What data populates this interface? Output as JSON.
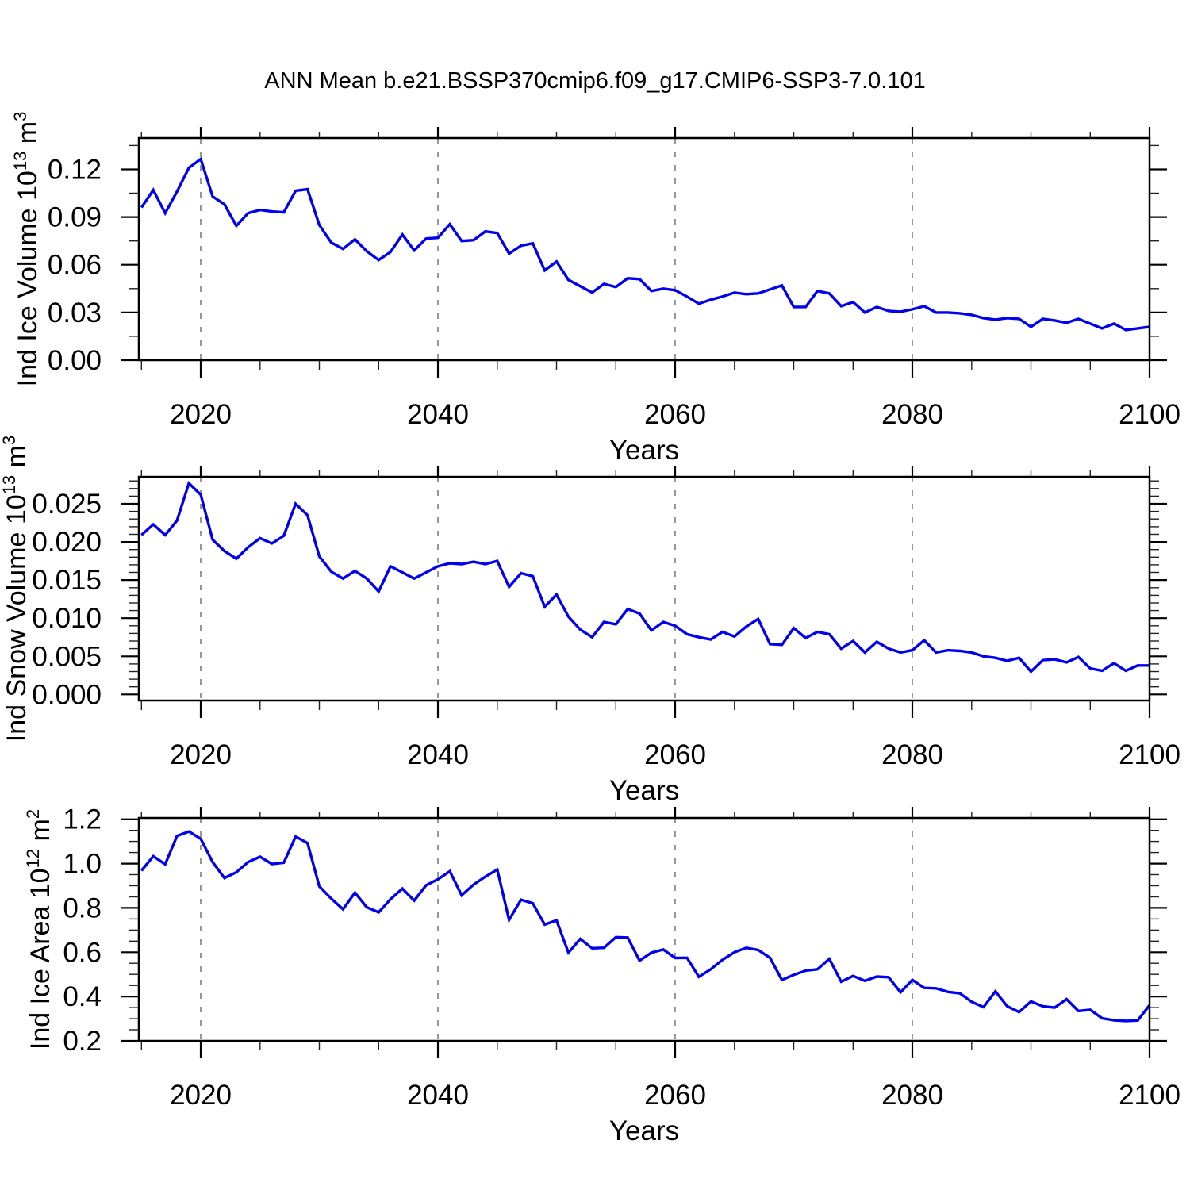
{
  "title": "ANN Mean b.e21.BSSP370cmip6.f09_g17.CMIP6-SSP3-7.0.101",
  "chart_data": {
    "type": "line",
    "title": "ANN Mean b.e21.BSSP370cmip6.f09_g17.CMIP6-SSP3-7.0.101",
    "x_label": "Years",
    "series_color": "#0000EE",
    "grid_color": "#8c8c8c",
    "legend": "none",
    "grid": "vertical dashed at major x ticks",
    "years": [
      2015,
      2016,
      2017,
      2018,
      2019,
      2020,
      2021,
      2022,
      2023,
      2024,
      2025,
      2026,
      2027,
      2028,
      2029,
      2030,
      2031,
      2032,
      2033,
      2034,
      2035,
      2036,
      2037,
      2038,
      2039,
      2040,
      2041,
      2042,
      2043,
      2044,
      2045,
      2046,
      2047,
      2048,
      2049,
      2050,
      2051,
      2052,
      2053,
      2054,
      2055,
      2056,
      2057,
      2058,
      2059,
      2060,
      2061,
      2062,
      2063,
      2064,
      2065,
      2066,
      2067,
      2068,
      2069,
      2070,
      2071,
      2072,
      2073,
      2074,
      2075,
      2076,
      2077,
      2078,
      2079,
      2080,
      2081,
      2082,
      2083,
      2084,
      2085,
      2086,
      2087,
      2088,
      2089,
      2090,
      2091,
      2092,
      2093,
      2094,
      2095,
      2096,
      2097,
      2098,
      2099,
      2100
    ],
    "x_axis": {
      "lim": [
        2014.78,
        2100
      ],
      "major_ticks": [
        2020,
        2040,
        2060,
        2080,
        2100
      ],
      "major_tick_labels": [
        "2020",
        "2040",
        "2060",
        "2080",
        "2100"
      ],
      "minor_step": 5,
      "gridlines": [
        2020,
        2040,
        2060,
        2080
      ]
    },
    "panels": [
      {
        "id": "ice-volume",
        "ylabel": "Ind Ice Volume 10^13 m^3",
        "ylabel_rich": [
          {
            "t": "Ind Ice Volume 10"
          },
          {
            "t": "13",
            "sup": true
          },
          {
            "t": " m"
          },
          {
            "t": "3",
            "sup": true
          }
        ],
        "ylim": [
          0,
          0.1397
        ],
        "ytick_values": [
          0.0,
          0.03,
          0.06,
          0.09,
          0.12
        ],
        "ytick_labels": [
          "0.00",
          "0.03",
          "0.06",
          "0.09",
          "0.12"
        ],
        "y_minor_step": 0.015,
        "values": [
          0.096,
          0.107,
          0.0925,
          0.106,
          0.121,
          0.1265,
          0.103,
          0.098,
          0.0845,
          0.0925,
          0.0945,
          0.0935,
          0.093,
          0.1065,
          0.1075,
          0.085,
          0.074,
          0.07,
          0.076,
          0.0685,
          0.063,
          0.068,
          0.079,
          0.069,
          0.0765,
          0.077,
          0.0855,
          0.075,
          0.0755,
          0.081,
          0.08,
          0.067,
          0.072,
          0.0735,
          0.0565,
          0.062,
          0.0505,
          0.0465,
          0.0425,
          0.048,
          0.046,
          0.0515,
          0.051,
          0.0435,
          0.045,
          0.044,
          0.04,
          0.0355,
          0.038,
          0.04,
          0.0425,
          0.0415,
          0.042,
          0.0445,
          0.047,
          0.0335,
          0.0335,
          0.0435,
          0.042,
          0.034,
          0.0365,
          0.03,
          0.0335,
          0.031,
          0.0305,
          0.032,
          0.034,
          0.03,
          0.03,
          0.0295,
          0.0285,
          0.0265,
          0.0255,
          0.0265,
          0.026,
          0.021,
          0.026,
          0.025,
          0.0235,
          0.026,
          0.023,
          0.02,
          0.023,
          0.019,
          0.02,
          0.021
        ]
      },
      {
        "id": "snow-volume",
        "ylabel": "Ind Snow Volume 10^13 m^3",
        "ylabel_rich": [
          {
            "t": "Ind Snow Volume 10"
          },
          {
            "t": "13",
            "sup": true
          },
          {
            "t": " m"
          },
          {
            "t": "3",
            "sup": true
          }
        ],
        "ylim": [
          -0.0008,
          0.02854
        ],
        "ytick_values": [
          0.0,
          0.005,
          0.01,
          0.015,
          0.02,
          0.025
        ],
        "ytick_labels": [
          "0.000",
          "0.005",
          "0.010",
          "0.015",
          "0.020",
          "0.025"
        ],
        "y_minor_step": 0.001,
        "values": [
          0.0209,
          0.0223,
          0.0209,
          0.0228,
          0.0277,
          0.0262,
          0.0203,
          0.0188,
          0.0178,
          0.0193,
          0.0205,
          0.0198,
          0.0208,
          0.025,
          0.0235,
          0.0181,
          0.0161,
          0.0152,
          0.0162,
          0.0152,
          0.0135,
          0.0168,
          0.016,
          0.0152,
          0.016,
          0.0168,
          0.0172,
          0.0171,
          0.0174,
          0.0171,
          0.0175,
          0.0141,
          0.0159,
          0.0155,
          0.0115,
          0.0131,
          0.0102,
          0.0085,
          0.0075,
          0.0095,
          0.0092,
          0.0112,
          0.0106,
          0.0084,
          0.0095,
          0.009,
          0.0079,
          0.0075,
          0.0072,
          0.0082,
          0.0076,
          0.0089,
          0.0099,
          0.0066,
          0.0065,
          0.0087,
          0.0074,
          0.0082,
          0.0079,
          0.006,
          0.007,
          0.0055,
          0.0069,
          0.006,
          0.0055,
          0.0058,
          0.0071,
          0.0055,
          0.0058,
          0.0057,
          0.0055,
          0.005,
          0.0048,
          0.0044,
          0.0048,
          0.003,
          0.0045,
          0.0046,
          0.0042,
          0.0049,
          0.0034,
          0.0031,
          0.0041,
          0.0031,
          0.0038,
          0.0038
        ]
      },
      {
        "id": "ice-area",
        "ylabel": "Ind Ice Area 10^12 m^2",
        "ylabel_rich": [
          {
            "t": "Ind Ice Area 10"
          },
          {
            "t": "12",
            "sup": true
          },
          {
            "t": " m"
          },
          {
            "t": "2",
            "sup": true
          }
        ],
        "ylim": [
          0.2,
          1.2061
        ],
        "ytick_values": [
          0.2,
          0.4,
          0.6,
          0.8,
          1.0,
          1.2
        ],
        "ytick_labels": [
          "0.2",
          "0.4",
          "0.6",
          "0.8",
          "1.0",
          "1.2"
        ],
        "y_minor_step": 0.05,
        "values": [
          0.968,
          1.033,
          0.997,
          1.125,
          1.145,
          1.112,
          1.007,
          0.935,
          0.961,
          1.007,
          1.031,
          0.998,
          1.004,
          1.122,
          1.093,
          0.897,
          0.842,
          0.794,
          0.869,
          0.803,
          0.78,
          0.839,
          0.887,
          0.833,
          0.902,
          0.929,
          0.965,
          0.857,
          0.905,
          0.941,
          0.973,
          0.746,
          0.837,
          0.821,
          0.725,
          0.744,
          0.598,
          0.66,
          0.618,
          0.62,
          0.668,
          0.666,
          0.562,
          0.598,
          0.612,
          0.574,
          0.575,
          0.489,
          0.523,
          0.566,
          0.6,
          0.62,
          0.61,
          0.575,
          0.475,
          0.498,
          0.517,
          0.523,
          0.57,
          0.467,
          0.493,
          0.471,
          0.49,
          0.487,
          0.419,
          0.475,
          0.439,
          0.437,
          0.421,
          0.415,
          0.376,
          0.352,
          0.423,
          0.356,
          0.33,
          0.378,
          0.356,
          0.35,
          0.388,
          0.335,
          0.34,
          0.302,
          0.293,
          0.29,
          0.292,
          0.361
        ]
      }
    ]
  }
}
